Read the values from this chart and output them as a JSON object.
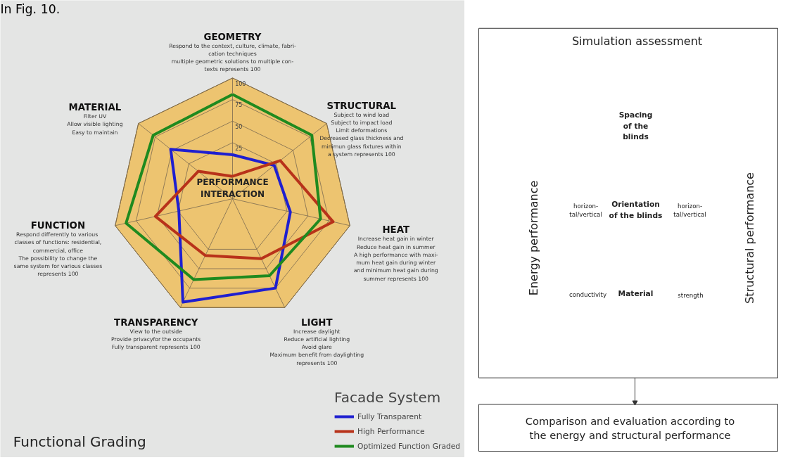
{
  "chart_data": [
    {
      "type": "radar",
      "title": "Functional Grading",
      "legend_title": "Facade System",
      "legend": "bottom right",
      "categories": [
        "GEOMETRY\nRespond to the context, culture, climate, fabri-\ncation techniques\nmultiple geometric solutions to multiple con-\ntexts represents 100",
        "STRUCTURAL\nSubject to wind load\nSubject to impact load\nLimit deformations\nDecreased glass thickness and\nminimun glass fixtures within\na system represents 100",
        "HEAT\nIncrease heat gain in winter\nReduce heat gain in summer\nA high performance with maxi-\nmum heat gain during winter\nand minimum heat gain during\nsummer represents 100",
        "LIGHT\nIncrease daylight\nReduce artificial lighting\nAvoid glare\nMaximum benefit from daylighting\nrepresents 100",
        "TRANSPARENCY\nView to the outside\nProvide privacyfor the occupants\nFully transparent represents 100",
        "FUNCTION\nRespond differently to  various\nclasses of functions: residential,\ncommercial, office\nThe possibility to change the\nsame system for various classes\nrepresents 100",
        "MATERIAL\nFilter UV\nAllow visible lighting\nEasy to maintain"
      ],
      "ylim": [
        -40,
        100
      ],
      "yticks": [
        25,
        50,
        75,
        100
      ],
      "grid": true,
      "annotations": [
        "In Fig. 10.",
        "PERFORMANCE\nINTERACTION"
      ],
      "series": [
        {
          "name": "Fully Transparent",
          "color": "#1f1fd0",
          "values": [
            11,
            22,
            29,
            75,
            93,
            24,
            52
          ]
        },
        {
          "name": "High Performance",
          "color": "#b8321a",
          "values": [
            -14,
            31,
            80,
            37,
            33,
            52,
            11
          ]
        },
        {
          "name": "Optimized Function Graded",
          "color": "#1f8a1f",
          "values": [
            81,
            78,
            65,
            59,
            64,
            87,
            78
          ]
        }
      ]
    },
    {
      "type": "other",
      "title": "Simulation assessment",
      "annotations": [
        "Energy performance",
        "Structural performance",
        "Spacing\nof the\nblinds",
        "Orientation\nof the blinds",
        "Material",
        "horizon-\ntal/vertical",
        "horizon-\ntal/vertical",
        "conductivity",
        "strength",
        "Comparison and evaluation according to\nthe energy and structural performance"
      ]
    }
  ]
}
